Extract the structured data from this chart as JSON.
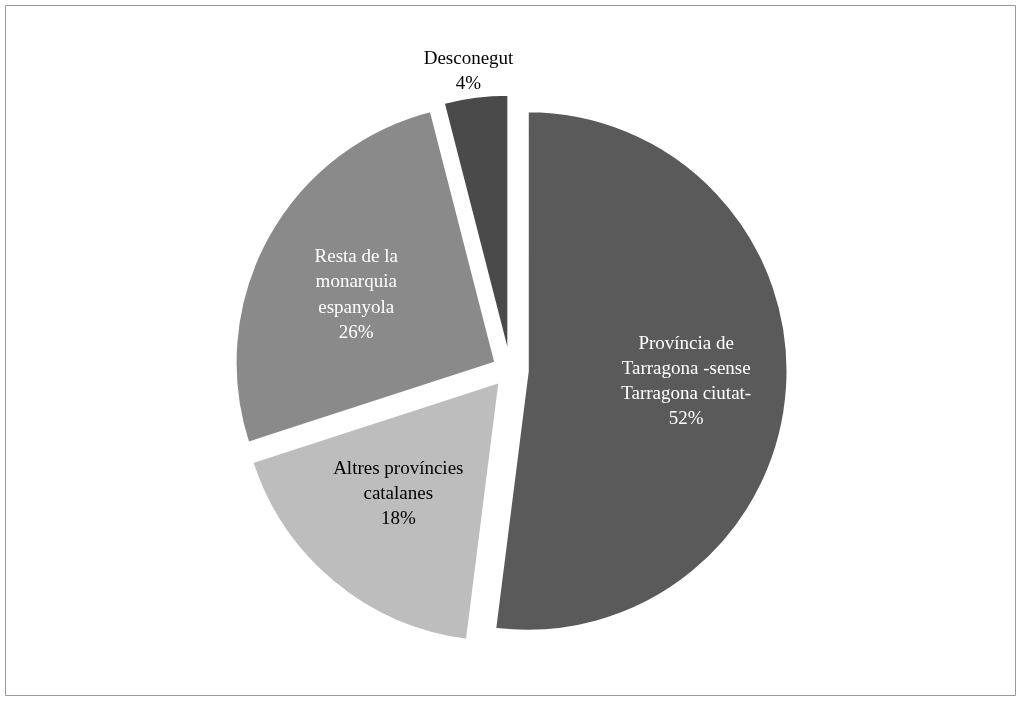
{
  "chart_data": {
    "type": "pie",
    "categories": [
      "Província de Tarragona -sense Tarragona ciutat-",
      "Altres províncies catalanes",
      "Resta de la monarquia espanyola",
      "Desconegut"
    ],
    "values": [
      52,
      18,
      26,
      4
    ],
    "colors": [
      "#5a5a5a",
      "#bdbdbd",
      "#8a8a8a",
      "#4a4a4a"
    ],
    "value_labels": [
      "52%",
      "18%",
      "26%",
      "4%"
    ]
  }
}
